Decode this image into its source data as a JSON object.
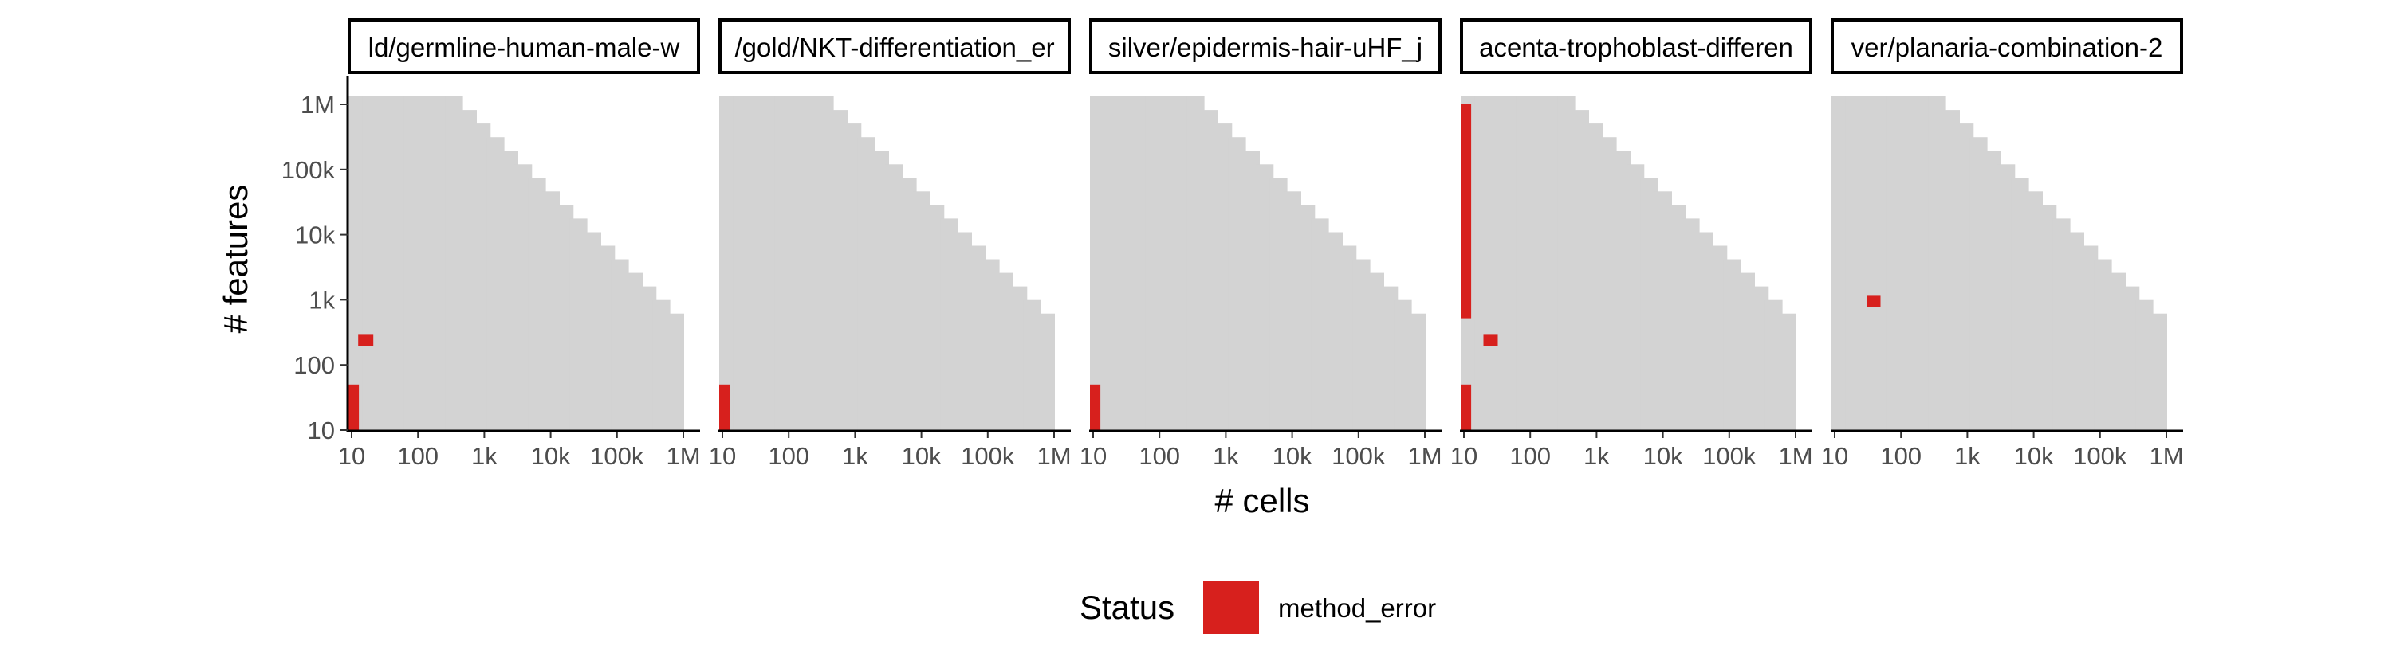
{
  "chart_data": {
    "type": "heatmap",
    "xlabel": "# cells",
    "ylabel": "# features",
    "x_scale": "log10",
    "y_scale": "log10",
    "xlim": [
      10,
      1000000
    ],
    "ylim": [
      10,
      1000000
    ],
    "x_ticks": [
      {
        "value": 10,
        "label": "10"
      },
      {
        "value": 100,
        "label": "100"
      },
      {
        "value": 1000,
        "label": "1k"
      },
      {
        "value": 10000,
        "label": "10k"
      },
      {
        "value": 100000,
        "label": "100k"
      },
      {
        "value": 1000000,
        "label": "1M"
      }
    ],
    "y_ticks": [
      {
        "value": 10,
        "label": "10"
      },
      {
        "value": 100,
        "label": "100"
      },
      {
        "value": 1000,
        "label": "1k"
      },
      {
        "value": 10000,
        "label": "10k"
      },
      {
        "value": 100000,
        "label": "100k"
      },
      {
        "value": 1000000,
        "label": "1M"
      }
    ],
    "grid": false,
    "legend": {
      "title": "Status",
      "position": "bottom",
      "entries": [
        {
          "label": "method_error",
          "color": "#d7201d"
        }
      ]
    },
    "colors": {
      "background_tiles": "#d3d3d3",
      "method_error": "#d7201d"
    },
    "panels": [
      {
        "strip_label": "ld/germline-human-male-w",
        "method_error": [
          {
            "cells": [
              10,
              11.5
            ],
            "features": [
              10,
              50
            ]
          },
          {
            "cells": [
              14,
              19
            ],
            "features": [
              220,
              290
            ]
          }
        ]
      },
      {
        "strip_label": "/gold/NKT-differentiation_er",
        "method_error": [
          {
            "cells": [
              10,
              11.5
            ],
            "features": [
              10,
              50
            ]
          }
        ]
      },
      {
        "strip_label": "silver/epidermis-hair-uHF_j",
        "method_error": [
          {
            "cells": [
              10,
              11.5
            ],
            "features": [
              10,
              50
            ]
          }
        ]
      },
      {
        "strip_label": "acenta-trophoblast-differen",
        "method_error": [
          {
            "cells": [
              10,
              11.5
            ],
            "features": [
              10,
              50
            ]
          },
          {
            "cells": [
              10,
              11.5
            ],
            "features": [
              520,
              1000000
            ]
          },
          {
            "cells": [
              22,
              29
            ],
            "features": [
              220,
              290
            ]
          }
        ]
      },
      {
        "strip_label": "ver/planaria-combination-2",
        "method_error": [
          {
            "cells": [
              34,
              44
            ],
            "features": [
              880,
              1150
            ]
          }
        ]
      }
    ]
  }
}
